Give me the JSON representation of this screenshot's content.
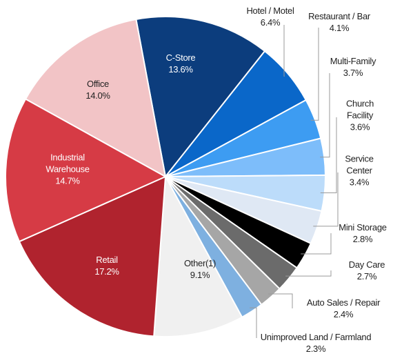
{
  "chart_data": {
    "type": "pie",
    "categories": [
      "C-Store",
      "Hotel / Motel",
      "Restaurant  / Bar",
      "Multi-Family",
      "Church Facility",
      "Service Center",
      "Mini Storage",
      "Day Care",
      "Auto Sales / Repair",
      "Unimproved Land / Farmland",
      "Other(1)",
      "Retail",
      "Industrial Warehouse",
      "Office"
    ],
    "values": [
      13.6,
      6.4,
      4.1,
      3.7,
      3.6,
      3.4,
      2.8,
      2.7,
      2.4,
      2.3,
      9.1,
      17.2,
      14.7,
      14.0
    ],
    "value_labels": [
      "13.6%",
      "6.4%",
      "4.1%",
      "3.7%",
      "3.6%",
      "3.4%",
      "2.8%",
      "2.7%",
      "2.4%",
      "2.3%",
      "9.1%",
      "17.2%",
      "14.7%",
      "14.0%"
    ],
    "colors": [
      "#0c3d7d",
      "#0a67c9",
      "#3d9cf2",
      "#7dbdfa",
      "#bcdcfa",
      "#dfe8f4",
      "#000000",
      "#6b6b6b",
      "#a6a6a6",
      "#7eb0e0",
      "#f0f0f0",
      "#b0232e",
      "#d63b45",
      "#f2c4c6"
    ]
  }
}
